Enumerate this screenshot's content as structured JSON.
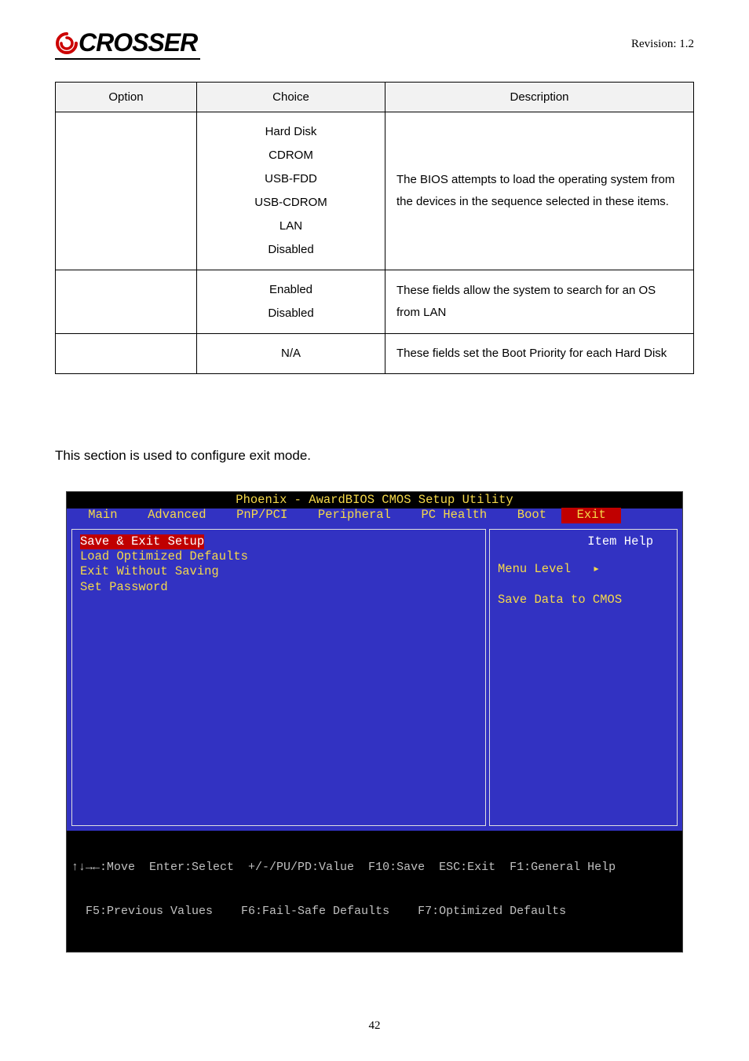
{
  "header": {
    "logo_text": "CROSSER",
    "revision": "Revision: 1.2"
  },
  "options_table": {
    "headers": [
      "Option",
      "Choice",
      "Description"
    ],
    "rows": [
      {
        "option": "",
        "choices": [
          "Hard Disk",
          "CDROM",
          "USB-FDD",
          "USB-CDROM",
          "LAN",
          "Disabled"
        ],
        "description": "The BIOS attempts to load the operating system from the devices in the sequence selected in these items."
      },
      {
        "option": "",
        "choices": [
          "Enabled",
          "Disabled"
        ],
        "description": "These fields allow the system to search for an OS from LAN"
      },
      {
        "option": "",
        "choices": [
          "N/A"
        ],
        "description": "These fields set the Boot Priority for each Hard Disk"
      }
    ]
  },
  "section_text": "This section is used to configure exit mode.",
  "bios": {
    "title": "Phoenix - AwardBIOS CMOS Setup Utility",
    "tabs": [
      "Main",
      "Advanced",
      "PnP/PCI",
      "Peripheral",
      "PC Health",
      "Boot",
      "Exit"
    ],
    "active_tab_index": 6,
    "left_items": [
      {
        "label": "Save & Exit Setup",
        "selected": true
      },
      {
        "label": "Load Optimized Defaults",
        "selected": false
      },
      {
        "label": "Exit Without Saving",
        "selected": false
      },
      {
        "label": "Set Password",
        "selected": false
      }
    ],
    "help_title": "Item Help",
    "help_lines": [
      "Menu Level   ▸",
      "",
      "Save Data to CMOS"
    ],
    "footer_line1": "↑↓→←:Move  Enter:Select  +/-/PU/PD:Value  F10:Save  ESC:Exit  F1:General Help",
    "footer_line2": "  F5:Previous Values    F6:Fail-Safe Defaults    F7:Optimized Defaults"
  },
  "page_number": "42",
  "colors": {
    "bios_bg": "#3232c2",
    "bios_yellow": "#f5d94a",
    "bios_red": "#c00000",
    "table_header_bg": "#f2f2f2"
  }
}
